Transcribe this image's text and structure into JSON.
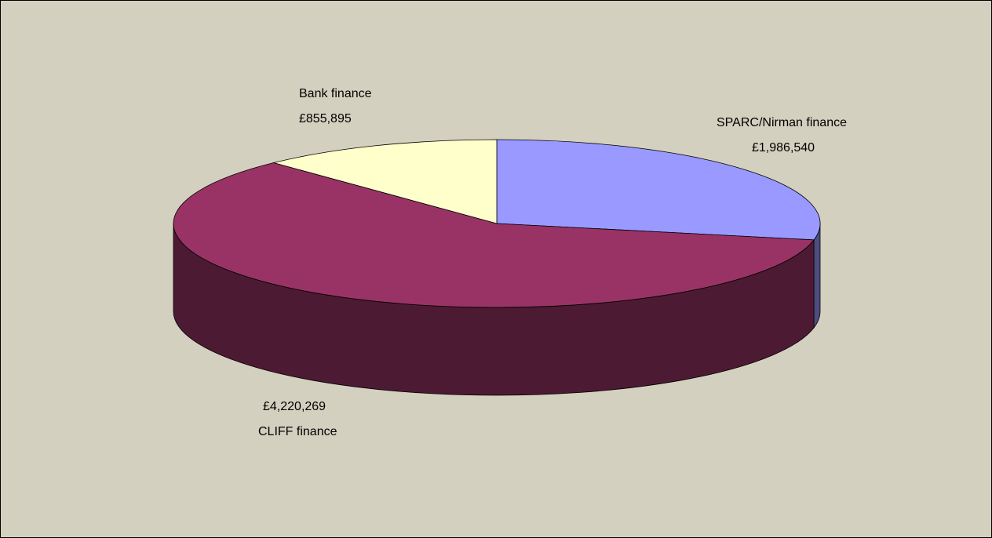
{
  "chart_data": {
    "type": "pie",
    "title": "",
    "currency": "£",
    "slices": [
      {
        "name": "SPARC/Nirman finance",
        "value": 1986540,
        "value_label": "£1,986,540",
        "color": "#9999ff"
      },
      {
        "name": "CLIFF finance",
        "value": 4220269,
        "value_label": "£4,220,269",
        "color": "#993366"
      },
      {
        "name": "Bank finance",
        "value": 855895,
        "value_label": "£855,895",
        "color": "#ffffcc"
      }
    ]
  }
}
